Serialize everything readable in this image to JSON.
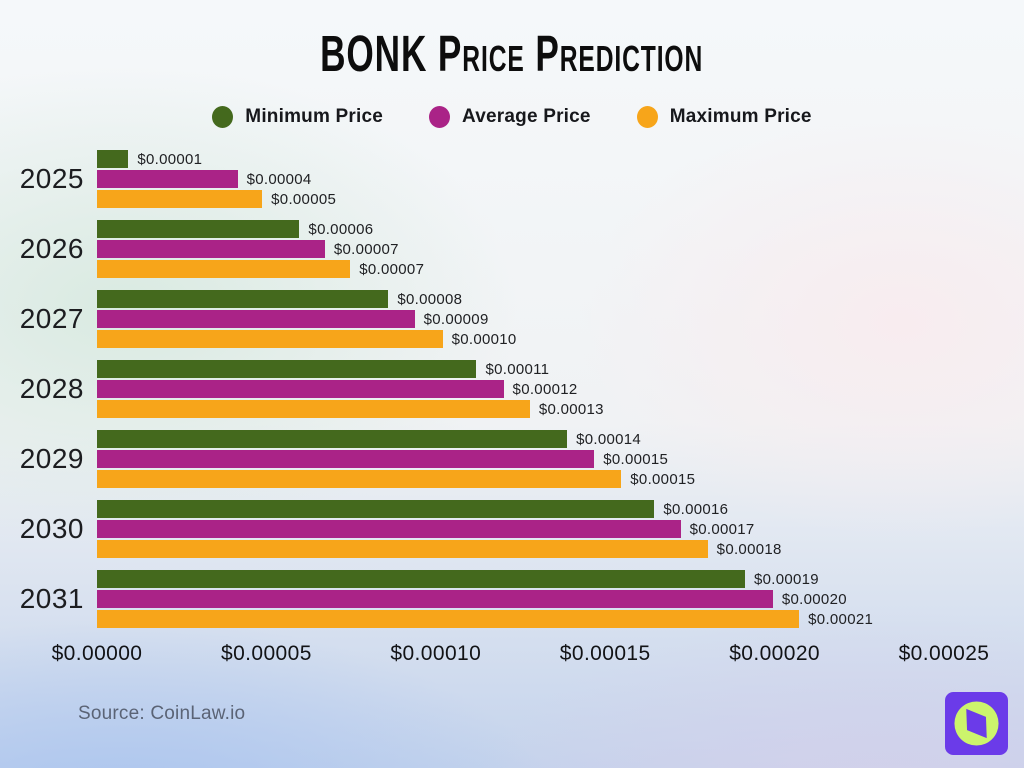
{
  "title": "BONK Price Prediction",
  "legend": [
    {
      "label": "Minimum Price",
      "color": "#44691D"
    },
    {
      "label": "Average Price",
      "color": "#AA2387"
    },
    {
      "label": "Maximum Price",
      "color": "#F7A51A"
    }
  ],
  "chart_data": {
    "type": "bar",
    "orientation": "horizontal",
    "title": "BONK Price Prediction",
    "categories": [
      "2025",
      "2026",
      "2027",
      "2028",
      "2029",
      "2030",
      "2031"
    ],
    "series": [
      {
        "name": "Minimum Price",
        "key": "minimum-price",
        "color": "#44691D",
        "values": [
          1e-05,
          6e-05,
          8e-05,
          0.00011,
          0.00014,
          0.00016,
          0.00019
        ],
        "labels": [
          "$0.00001",
          "$0.00006",
          "$0.00008",
          "$0.00011",
          "$0.00014",
          "$0.00016",
          "$0.00019"
        ],
        "bar_pct": [
          3.7,
          23.9,
          34.4,
          44.8,
          55.5,
          65.8,
          76.5
        ]
      },
      {
        "name": "Average Price",
        "key": "average-price",
        "color": "#AA2387",
        "values": [
          4e-05,
          7e-05,
          9e-05,
          0.00012,
          0.00015,
          0.00017,
          0.0002
        ],
        "labels": [
          "$0.00004",
          "$0.00007",
          "$0.00009",
          "$0.00012",
          "$0.00015",
          "$0.00017",
          "$0.00020"
        ],
        "bar_pct": [
          16.6,
          26.9,
          37.5,
          48.0,
          58.7,
          68.9,
          79.8
        ]
      },
      {
        "name": "Maximum Price",
        "key": "maximum-price",
        "color": "#F7A51A",
        "values": [
          5e-05,
          7e-05,
          0.0001,
          0.00013,
          0.00015,
          0.00018,
          0.00021
        ],
        "labels": [
          "$0.00005",
          "$0.00007",
          "$0.00010",
          "$0.00013",
          "$0.00015",
          "$0.00018",
          "$0.00021"
        ],
        "bar_pct": [
          19.5,
          29.9,
          40.8,
          51.1,
          61.9,
          72.1,
          82.9
        ]
      }
    ],
    "x_ticks": [
      "$0.00000",
      "$0.00005",
      "$0.00010",
      "$0.00015",
      "$0.00020",
      "$0.00025"
    ],
    "xlim": [
      0,
      0.00025
    ],
    "xlabel": "",
    "ylabel": "",
    "grid": false,
    "legend_position": "top"
  },
  "source": "Source: CoinLaw.io",
  "logo": {
    "icon": "compass-icon",
    "bg_color": "#6B3BE9",
    "circle_color": "#CCF46C",
    "needle_color": "#6B3BE9"
  }
}
